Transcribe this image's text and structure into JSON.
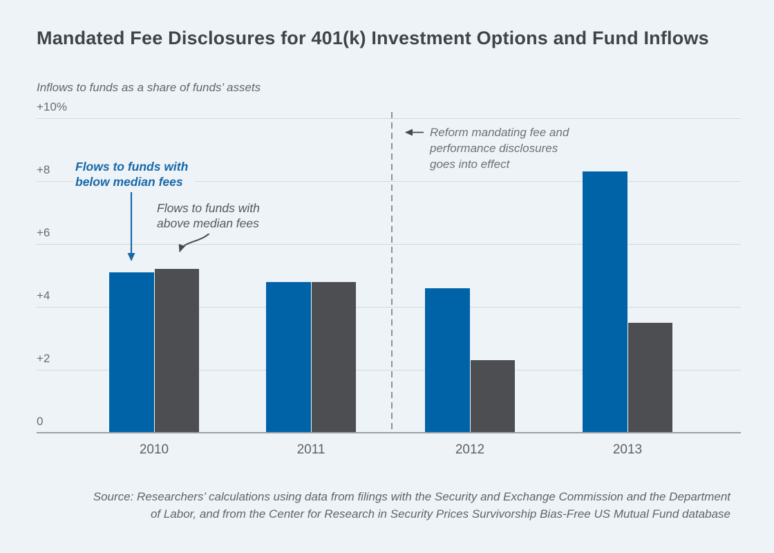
{
  "page": {
    "background_color": "#eef3f7"
  },
  "chart_data": {
    "type": "bar",
    "title": "Mandated Fee Disclosures for 401(k) Investment Options and Fund Inflows",
    "ylabel": "Inflows to funds as a share of funds’ assets",
    "xlabel": "",
    "categories": [
      "2010",
      "2011",
      "2012",
      "2013"
    ],
    "series": [
      {
        "name": "Flows to funds with below median fees",
        "color": "#0063a8",
        "values": [
          5.1,
          4.8,
          4.6,
          8.3
        ]
      },
      {
        "name": "Flows to funds with above median fees",
        "color": "#4c4e51",
        "values": [
          5.2,
          4.8,
          2.3,
          3.5
        ]
      }
    ],
    "ylim": [
      0,
      10
    ],
    "yticks": [
      {
        "value": 0,
        "label": "0"
      },
      {
        "value": 2,
        "label": "+2"
      },
      {
        "value": 4,
        "label": "+4"
      },
      {
        "value": 6,
        "label": "+6"
      },
      {
        "value": 8,
        "label": "+8"
      },
      {
        "value": 10,
        "label": "+10%"
      }
    ],
    "grid": true,
    "legend_position": "inline-annotations",
    "event_line": {
      "position": "between 2011 and 2012",
      "style": "dashed-vertical",
      "label": "Reform mandating fee and\nperformance disclosures\ngoes into effect"
    }
  },
  "annotations": {
    "below_median_label": "Flows to funds with\nbelow median fees",
    "above_median_label": "Flows to funds with\nabove median fees",
    "reform_note": "Reform mandating fee and\nperformance disclosures\ngoes into effect"
  },
  "source_note": "Source: Researchers’ calculations using data from filings with the Security and Exchange Commission and the Department\nof Labor, and from the Center for Research in Security Prices Survivorship Bias-Free US Mutual Fund database",
  "colors": {
    "background": "#eef3f7",
    "below_median_bar": "#0063a8",
    "above_median_bar": "#4c4e51",
    "gridline": "#d3d8dd",
    "baseline": "#9aa0a6",
    "dashed_event_line": "#8b9299",
    "arrow_dark": "#45494d",
    "arrow_blue": "#1768a9"
  }
}
